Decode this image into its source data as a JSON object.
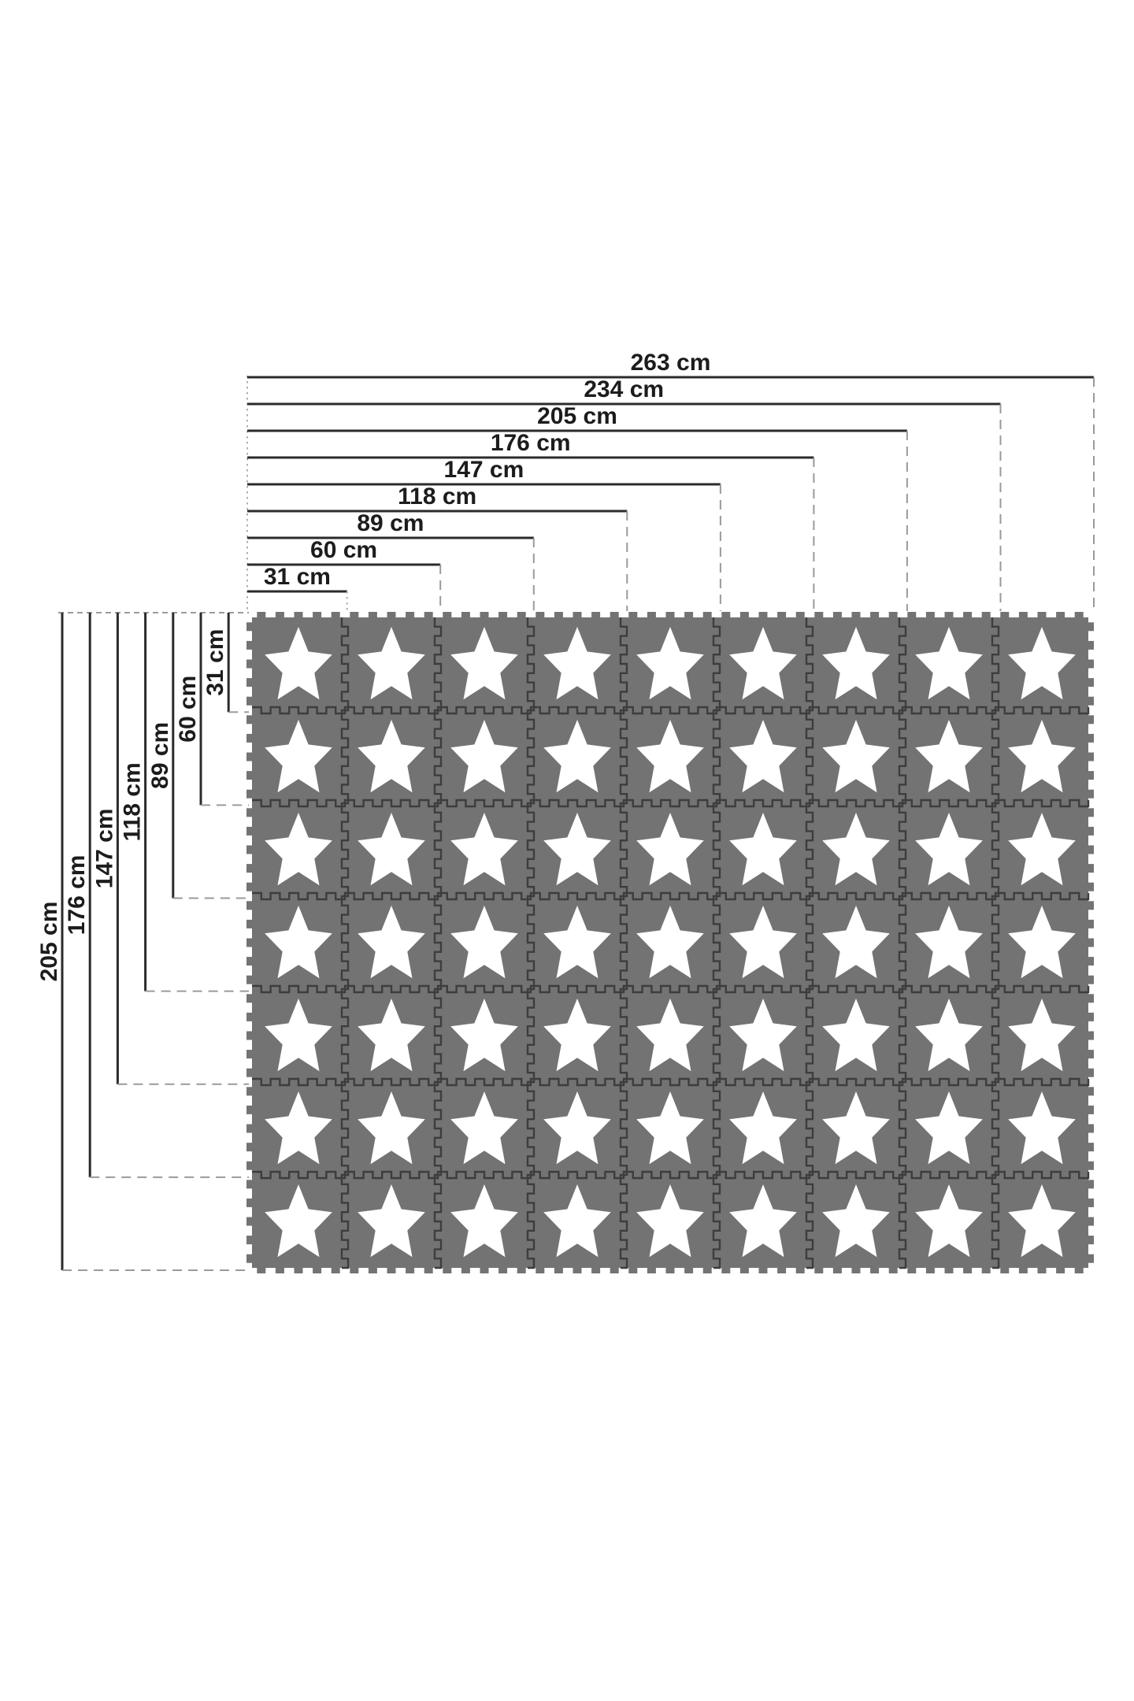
{
  "page": {
    "background": "#ffffff"
  },
  "diagram": {
    "type": "product-dimension-diagram",
    "subject": "interlocking-foam-play-mat-with-star-tiles",
    "unit": "cm",
    "top_dimensions": {
      "values": [
        263,
        234,
        205,
        176,
        147,
        118,
        89,
        60,
        31
      ],
      "labels": [
        "263 cm",
        "234 cm",
        "205 cm",
        "176 cm",
        "147 cm",
        "118 cm",
        "89 cm",
        "60 cm",
        "31 cm"
      ]
    },
    "left_dimensions": {
      "values": [
        205,
        176,
        147,
        118,
        89,
        60,
        31
      ],
      "labels": [
        "205 cm",
        "176 cm",
        "147 cm",
        "118 cm",
        "89 cm",
        "60 cm",
        "31 cm"
      ]
    },
    "mat": {
      "columns": 9,
      "rows": 7,
      "tile_count": 63,
      "tile_motif": "star"
    },
    "colors": {
      "background": "#ffffff",
      "tile": "#737373",
      "seam": "#3d3d3d",
      "star": "#ffffff",
      "dimension_line": "#2b2b2b",
      "dash": "#9a9a9a",
      "dot": "#b0b0b0",
      "text": "#1c1c1c"
    }
  }
}
